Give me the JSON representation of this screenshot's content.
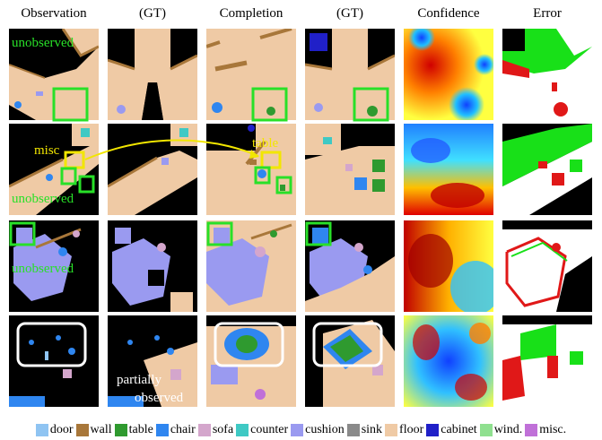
{
  "headers": [
    "Observation",
    "(GT)",
    "Completion",
    "(GT)",
    "Confidence",
    "Error"
  ],
  "annotations": {
    "unobserved": "unobserved",
    "misc": "misc",
    "table": "table",
    "partially_observed_line1": "partially",
    "partially_observed_line2": "observed"
  },
  "legend": [
    {
      "label": "door",
      "color": "#8fc4f2"
    },
    {
      "label": "wall",
      "color": "#a8773a"
    },
    {
      "label": "table",
      "color": "#2f9a2f"
    },
    {
      "label": "chair",
      "color": "#2f86f0"
    },
    {
      "label": "sofa",
      "color": "#d4a6cc"
    },
    {
      "label": "counter",
      "color": "#3fc9c4"
    },
    {
      "label": "cushion",
      "color": "#9a9af0"
    },
    {
      "label": "sink",
      "color": "#8a8a8a"
    },
    {
      "label": "floor",
      "color": "#efcaa5"
    },
    {
      "label": "cabinet",
      "color": "#2020c8"
    },
    {
      "label": "wind.",
      "color": "#8fe08f"
    },
    {
      "label": "misc.",
      "color": "#c070d8"
    }
  ],
  "colors": {
    "floor": "#efcaa5",
    "wall": "#a8773a",
    "unknown": "#000000",
    "highlight_green": "#28e028",
    "highlight_yellow": "#f2e600",
    "highlight_white": "#ffffff",
    "error_correct": "#ffffff",
    "error_wrong": "#e01818",
    "error_unobserved": "#18e018"
  }
}
